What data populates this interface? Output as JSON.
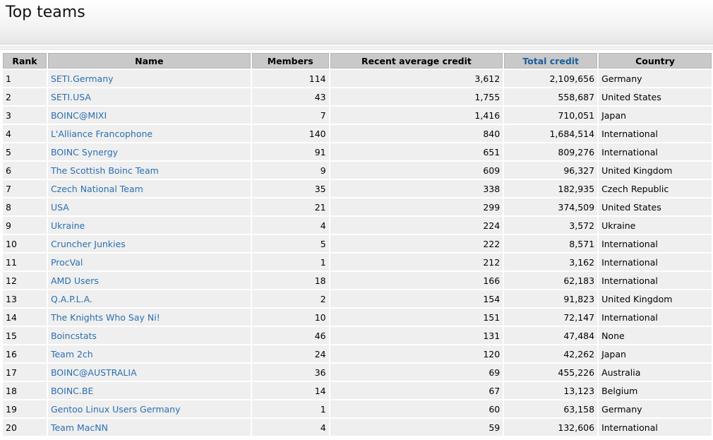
{
  "page": {
    "title": "Top teams"
  },
  "columns": {
    "rank": "Rank",
    "name": "Name",
    "members": "Members",
    "rac": "Recent average credit",
    "total": "Total credit",
    "country": "Country"
  },
  "rows": [
    {
      "rank": "1",
      "name": "SETI.Germany",
      "members": "114",
      "rac": "3,612",
      "total": "2,109,656",
      "country": "Germany"
    },
    {
      "rank": "2",
      "name": "SETI.USA",
      "members": "43",
      "rac": "1,755",
      "total": "558,687",
      "country": "United States"
    },
    {
      "rank": "3",
      "name": "BOINC@MIXI",
      "members": "7",
      "rac": "1,416",
      "total": "710,051",
      "country": "Japan"
    },
    {
      "rank": "4",
      "name": "L'Alliance Francophone",
      "members": "140",
      "rac": "840",
      "total": "1,684,514",
      "country": "International"
    },
    {
      "rank": "5",
      "name": "BOINC Synergy",
      "members": "91",
      "rac": "651",
      "total": "809,276",
      "country": "International"
    },
    {
      "rank": "6",
      "name": "The Scottish Boinc Team",
      "members": "9",
      "rac": "609",
      "total": "96,327",
      "country": "United Kingdom"
    },
    {
      "rank": "7",
      "name": "Czech National Team",
      "members": "35",
      "rac": "338",
      "total": "182,935",
      "country": "Czech Republic"
    },
    {
      "rank": "8",
      "name": "USA",
      "members": "21",
      "rac": "299",
      "total": "374,509",
      "country": "United States"
    },
    {
      "rank": "9",
      "name": "Ukraine",
      "members": "4",
      "rac": "224",
      "total": "3,572",
      "country": "Ukraine"
    },
    {
      "rank": "10",
      "name": "Cruncher Junkies",
      "members": "5",
      "rac": "222",
      "total": "8,571",
      "country": "International"
    },
    {
      "rank": "11",
      "name": "ProcVal",
      "members": "1",
      "rac": "212",
      "total": "3,162",
      "country": "International"
    },
    {
      "rank": "12",
      "name": "AMD Users",
      "members": "18",
      "rac": "166",
      "total": "62,183",
      "country": "International"
    },
    {
      "rank": "13",
      "name": "Q.A.P.L.A.",
      "members": "2",
      "rac": "154",
      "total": "91,823",
      "country": "United Kingdom"
    },
    {
      "rank": "14",
      "name": "The Knights Who Say Ni!",
      "members": "10",
      "rac": "151",
      "total": "72,147",
      "country": "International"
    },
    {
      "rank": "15",
      "name": "Boincstats",
      "members": "46",
      "rac": "131",
      "total": "47,484",
      "country": "None"
    },
    {
      "rank": "16",
      "name": "Team 2ch",
      "members": "24",
      "rac": "120",
      "total": "42,262",
      "country": "Japan"
    },
    {
      "rank": "17",
      "name": "BOINC@AUSTRALIA",
      "members": "36",
      "rac": "69",
      "total": "455,226",
      "country": "Australia"
    },
    {
      "rank": "18",
      "name": "BOINC.BE",
      "members": "14",
      "rac": "67",
      "total": "13,123",
      "country": "Belgium"
    },
    {
      "rank": "19",
      "name": "Gentoo Linux Users Germany",
      "members": "1",
      "rac": "60",
      "total": "63,158",
      "country": "Germany"
    },
    {
      "rank": "20",
      "name": "Team MacNN",
      "members": "4",
      "rac": "59",
      "total": "132,606",
      "country": "International"
    }
  ]
}
